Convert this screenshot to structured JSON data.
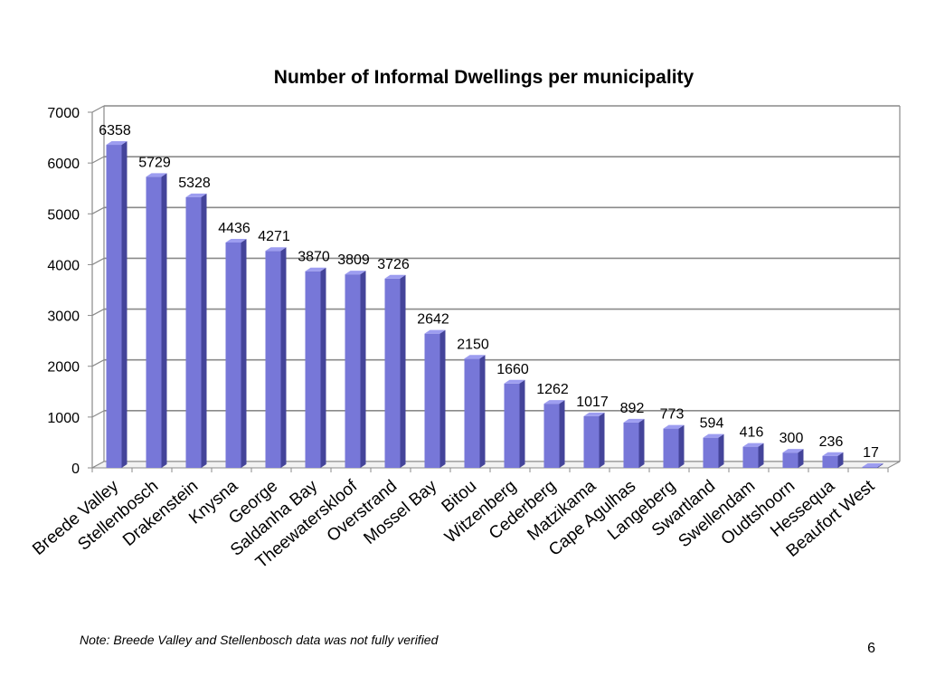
{
  "slide": {
    "note": "Note: Breede Valley and Stellenbosch data was not fully verified",
    "page_number": "6"
  },
  "chart_data": {
    "type": "bar",
    "title": "Number of Informal Dwellings per municipality",
    "xlabel": "",
    "ylabel": "",
    "ylim": [
      0,
      7000
    ],
    "yticks": [
      0,
      1000,
      2000,
      3000,
      4000,
      5000,
      6000,
      7000
    ],
    "grid": true,
    "style": "3d-column",
    "bar_color": "#7777d8",
    "bar_side_color": "#44449a",
    "bar_top_color": "#9d9df0",
    "categories": [
      "Breede Valley",
      "Stellenbosch",
      "Drakenstein",
      "Knysna",
      "George",
      "Saldanha Bay",
      "Theewaterskloof",
      "Overstrand",
      "Mossel Bay",
      "Bitou",
      "Witzenberg",
      "Cederberg",
      "Matzikama",
      "Cape Agulhas",
      "Langeberg",
      "Swartland",
      "Swellendam",
      "Oudtshoorn",
      "Hessequa",
      "Beaufort West"
    ],
    "values": [
      6358,
      5729,
      5328,
      4436,
      4271,
      3870,
      3809,
      3726,
      2642,
      2150,
      1660,
      1262,
      1017,
      892,
      773,
      594,
      416,
      300,
      236,
      17
    ],
    "data_labels": [
      "6358",
      "5729",
      "5328",
      "4436",
      "4271",
      "3870",
      "3809",
      "3726",
      "2642",
      "2150",
      "1660",
      "1262",
      "1017",
      "892",
      "773",
      "594",
      "416",
      "300",
      "236",
      "17"
    ]
  }
}
